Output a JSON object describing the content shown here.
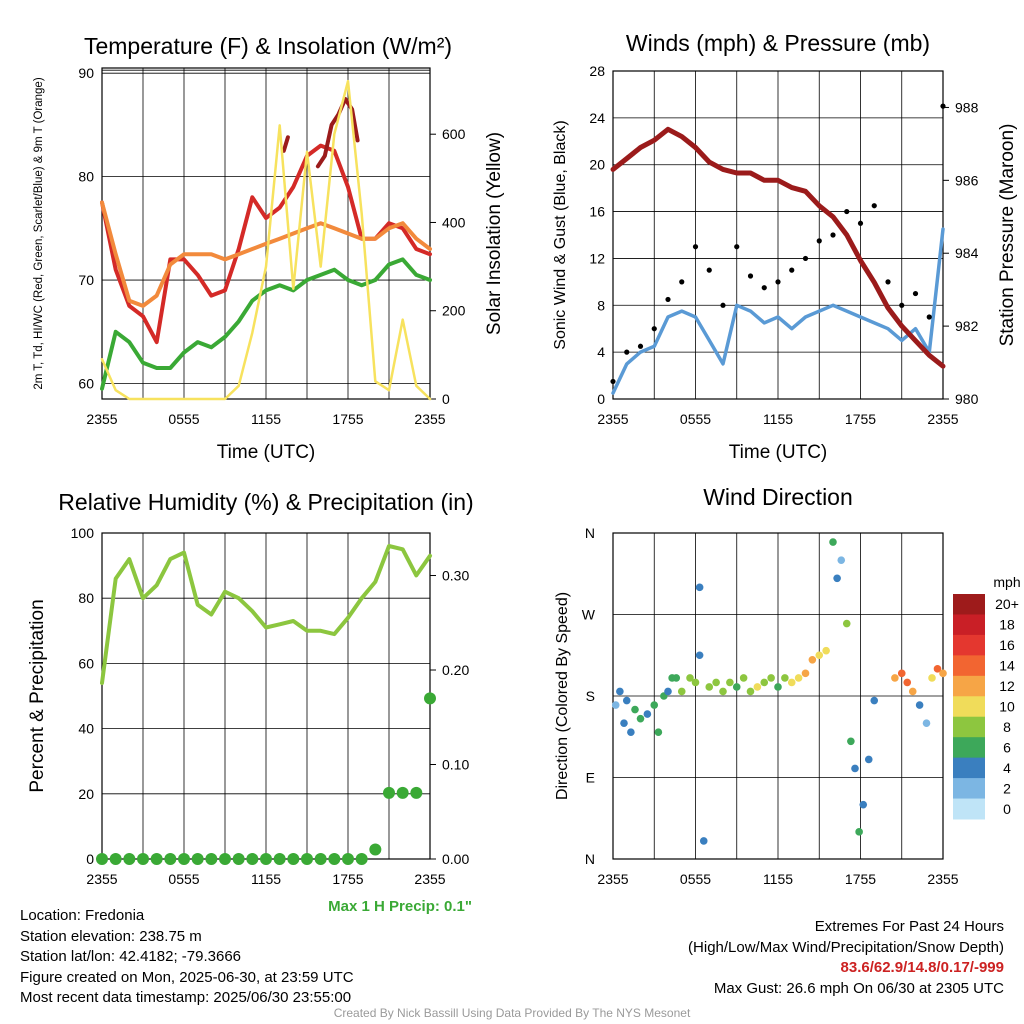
{
  "location_label": "Location: Fredonia",
  "elevation_label": "Station elevation: 238.75 m",
  "latlon_label": "Station lat/lon: 42.4182; -79.3666",
  "created_label": "Figure created on Mon, 2025-06-30, at 23:59 UTC",
  "recent_label": "Most recent data timestamp: 2025/06/30 23:55:00",
  "extremes_title": "Extremes For Past 24 Hours",
  "extremes_subtitle": "(High/Low/Max Wind/Precipitation/Snow Depth)",
  "extremes_values": "83.6/62.9/14.8/0.17/-999",
  "max_gust": "Max Gust: 26.6 mph On 06/30 at 2305 UTC",
  "credit": "Created By Nick Bassill Using Data Provided By The NYS Mesonet",
  "colors": {
    "red": "#d42a27",
    "green": "#3aa935",
    "orange": "#f28a3c",
    "yellow": "#f7e25e",
    "maroon": "#9b1b1b",
    "blue": "#5a9ad5",
    "rh": "#8cc63f",
    "precip": "#3aa935"
  },
  "chart_data": [
    {
      "type": "line",
      "title": "Temperature (F) & Insolation (W/m²)",
      "xlabel": "Time (UTC)",
      "ylabel": "2m T, Td, HI/WC (Red, Green, Scarlet/Blue) & 9m T (Orange)",
      "y2label": "Solar Insolation (Yellow)",
      "xticks": [
        "2355",
        "0555",
        "1155",
        "1755",
        "2355"
      ],
      "yticks": [
        60,
        70,
        80,
        90
      ],
      "y2ticks": [
        0,
        200,
        400,
        600
      ],
      "ylim": [
        58.5,
        90.5
      ],
      "y2lim": [
        0,
        750
      ],
      "x": [
        0,
        1,
        2,
        3,
        4,
        5,
        6,
        7,
        8,
        9,
        10,
        11,
        12,
        13,
        14,
        15,
        16,
        17,
        18,
        19,
        20,
        21,
        22,
        23,
        24
      ],
      "series": [
        {
          "name": "2m T",
          "color": "#d42a27",
          "values": [
            77.5,
            71,
            67.5,
            66.5,
            64,
            72,
            72,
            70.5,
            68.5,
            69,
            73,
            78,
            76,
            77,
            79,
            82,
            83,
            82.5,
            79,
            74,
            74,
            75.5,
            75,
            73,
            72.5
          ]
        },
        {
          "name": "HI/WC",
          "color": "#9b1b1b",
          "segments": [
            {
              "x": [
                13.3,
                13.6
              ],
              "values": [
                82.5,
                83.8
              ]
            },
            {
              "x": [
                15.8,
                16.3,
                16.8,
                17.3,
                17.8,
                18.3,
                18.7
              ],
              "values": [
                81,
                82,
                85,
                86,
                87.5,
                86.5,
                83.5
              ]
            }
          ]
        },
        {
          "name": "9m T",
          "color": "#f28a3c",
          "values": [
            77.5,
            72.5,
            68,
            67.5,
            68.5,
            71.5,
            72.5,
            72.5,
            72.5,
            72,
            72.5,
            73,
            73.5,
            74,
            74.5,
            75,
            75.5,
            75,
            74.5,
            74,
            74,
            75,
            75.5,
            74,
            73
          ]
        },
        {
          "name": "Td",
          "color": "#3aa935",
          "values": [
            59.5,
            65,
            64,
            62,
            61.5,
            61.5,
            63,
            64,
            63.5,
            64.5,
            66,
            68,
            69,
            69.5,
            69,
            70,
            70.5,
            71,
            70,
            69.5,
            70,
            71.5,
            72,
            70.5,
            70
          ]
        },
        {
          "name": "Solar Insolation",
          "color": "#f7e25e",
          "axis": "y2",
          "values": [
            90,
            20,
            0,
            0,
            0,
            0,
            0,
            0,
            0,
            0,
            30,
            150,
            300,
            620,
            250,
            560,
            300,
            600,
            720,
            420,
            40,
            20,
            180,
            30,
            0
          ]
        }
      ]
    },
    {
      "type": "line",
      "title": "Winds (mph) & Pressure (mb)",
      "xlabel": "Time (UTC)",
      "ylabel": "Sonic Wind & Gust (Blue, Black)",
      "y2label": "Station Pressure (Maroon)",
      "xticks": [
        "2355",
        "0555",
        "1155",
        "1755",
        "2355"
      ],
      "yticks": [
        0,
        4,
        8,
        12,
        16,
        20,
        24,
        28
      ],
      "y2ticks": [
        980,
        982,
        984,
        986,
        988
      ],
      "ylim": [
        0,
        28
      ],
      "y2lim": [
        980,
        989
      ],
      "x": [
        0,
        1,
        2,
        3,
        4,
        5,
        6,
        7,
        8,
        9,
        10,
        11,
        12,
        13,
        14,
        15,
        16,
        17,
        18,
        19,
        20,
        21,
        22,
        23,
        24
      ],
      "series": [
        {
          "name": "Sonic Wind",
          "color": "#5a9ad5",
          "values": [
            0.5,
            3,
            4,
            4.5,
            7,
            7.5,
            7,
            5,
            3,
            8,
            7.5,
            6.5,
            7,
            6,
            7,
            7.5,
            8,
            7.5,
            7,
            6.5,
            6,
            5,
            6,
            4,
            14.5
          ]
        },
        {
          "name": "Gust",
          "color": "#000000",
          "style": "points",
          "values": [
            1.5,
            4,
            4.5,
            6,
            8.5,
            10,
            13,
            11,
            8,
            13,
            10.5,
            9.5,
            10,
            11,
            12,
            13.5,
            14,
            16,
            15,
            16.5,
            10,
            8,
            9,
            7,
            25
          ]
        },
        {
          "name": "Station Pressure",
          "color": "#9b1b1b",
          "axis": "y2",
          "values": [
            986.3,
            986.6,
            986.9,
            987.1,
            987.4,
            987.2,
            986.9,
            986.5,
            986.3,
            986.2,
            986.2,
            986.0,
            986.0,
            985.8,
            985.7,
            985.3,
            985.0,
            984.5,
            983.8,
            983.2,
            982.5,
            982.0,
            981.6,
            981.2,
            980.9
          ]
        }
      ]
    },
    {
      "type": "line",
      "title": "Relative Humidity (%) & Precipitation (in)",
      "ylabel": "Percent & Precipitation",
      "xticks": [
        "2355",
        "0555",
        "1155",
        "1755",
        "2355"
      ],
      "yticks": [
        0,
        20,
        40,
        60,
        80,
        100
      ],
      "y2ticks": [
        "0.00",
        "0.10",
        "0.20",
        "0.30"
      ],
      "ylim": [
        0,
        100
      ],
      "y2lim": [
        0,
        0.345
      ],
      "x": [
        0,
        1,
        2,
        3,
        4,
        5,
        6,
        7,
        8,
        9,
        10,
        11,
        12,
        13,
        14,
        15,
        16,
        17,
        18,
        19,
        20,
        21,
        22,
        23,
        24
      ],
      "series": [
        {
          "name": "Relative Humidity",
          "color": "#8cc63f",
          "values": [
            54,
            86,
            92,
            80,
            84,
            92,
            94,
            78,
            75,
            82,
            80,
            76,
            71,
            72,
            73,
            70,
            70,
            69,
            74,
            80,
            85,
            96,
            95,
            87,
            93
          ]
        },
        {
          "name": "Precipitation",
          "color": "#3aa935",
          "axis": "y2",
          "style": "points",
          "values": [
            0,
            0,
            0,
            0,
            0,
            0,
            0,
            0,
            0,
            0,
            0,
            0,
            0,
            0,
            0,
            0,
            0,
            0,
            0,
            0,
            0.01,
            0.07,
            0.07,
            0.07,
            0.17
          ]
        }
      ],
      "annotation": "Max 1 H Precip: 0.1\""
    },
    {
      "type": "scatter",
      "title": "Wind Direction",
      "ylabel": "Direction (Colored By Speed)",
      "xticks": [
        "2355",
        "0555",
        "1155",
        "1755",
        "2355"
      ],
      "ytick_labels": [
        "N",
        "E",
        "S",
        "W",
        "N"
      ],
      "ylim": [
        0,
        360
      ],
      "colorbar_title": "mph",
      "colorbar_labels": [
        "20+",
        "18",
        "16",
        "14",
        "12",
        "10",
        "8",
        "6",
        "4",
        "2",
        "0"
      ],
      "colorbar_colors": [
        "#9e1b1b",
        "#c91f26",
        "#e4372f",
        "#f26531",
        "#f6a546",
        "#f0dc5a",
        "#8dc63f",
        "#3da85a",
        "#3a7fbf",
        "#7cb6e3",
        "#bfe4f7"
      ],
      "points": [
        [
          0.2,
          170,
          2
        ],
        [
          0.5,
          185,
          3
        ],
        [
          0.8,
          150,
          4
        ],
        [
          1.0,
          175,
          3
        ],
        [
          1.3,
          140,
          4
        ],
        [
          1.6,
          165,
          5
        ],
        [
          2.0,
          155,
          6
        ],
        [
          2.5,
          160,
          4
        ],
        [
          3.0,
          170,
          5
        ],
        [
          3.3,
          140,
          6
        ],
        [
          3.7,
          180,
          5
        ],
        [
          4.0,
          185,
          4
        ],
        [
          4.3,
          200,
          5
        ],
        [
          4.6,
          200,
          6
        ],
        [
          5.0,
          185,
          7
        ],
        [
          5.6,
          200,
          8
        ],
        [
          6.0,
          195,
          7
        ],
        [
          6.3,
          300,
          4
        ],
        [
          6.3,
          225,
          4
        ],
        [
          6.6,
          20,
          3
        ],
        [
          7.0,
          190,
          8
        ],
        [
          7.5,
          195,
          7
        ],
        [
          8.0,
          185,
          8
        ],
        [
          8.5,
          195,
          7
        ],
        [
          9.0,
          190,
          6
        ],
        [
          9.5,
          200,
          7
        ],
        [
          10.0,
          185,
          8
        ],
        [
          10.5,
          190,
          9
        ],
        [
          11.0,
          195,
          8
        ],
        [
          11.5,
          200,
          7
        ],
        [
          12.0,
          190,
          6
        ],
        [
          12.5,
          200,
          8
        ],
        [
          13.0,
          195,
          9
        ],
        [
          13.5,
          200,
          10
        ],
        [
          14.0,
          205,
          11
        ],
        [
          14.5,
          220,
          12
        ],
        [
          15.0,
          225,
          10
        ],
        [
          15.5,
          230,
          9
        ],
        [
          16.0,
          350,
          6
        ],
        [
          16.3,
          310,
          3
        ],
        [
          16.6,
          330,
          2
        ],
        [
          17.0,
          260,
          8
        ],
        [
          17.3,
          130,
          5
        ],
        [
          17.6,
          100,
          4
        ],
        [
          17.9,
          30,
          6
        ],
        [
          18.2,
          60,
          3
        ],
        [
          18.6,
          110,
          4
        ],
        [
          19.0,
          175,
          3
        ],
        [
          20.5,
          200,
          12
        ],
        [
          21.0,
          205,
          14
        ],
        [
          21.4,
          195,
          13
        ],
        [
          21.8,
          185,
          12
        ],
        [
          22.3,
          170,
          4
        ],
        [
          22.8,
          150,
          2
        ],
        [
          23.2,
          200,
          10
        ],
        [
          23.6,
          210,
          13
        ],
        [
          24.0,
          205,
          12
        ]
      ]
    }
  ]
}
